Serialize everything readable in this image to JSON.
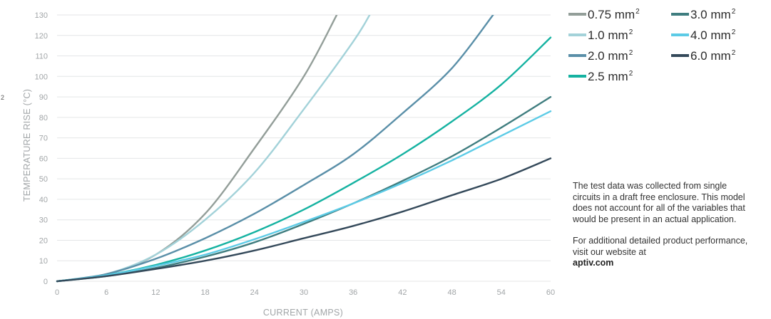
{
  "chart_data": {
    "type": "line",
    "xlabel": "CURRENT (AMPS)",
    "ylabel": "TEMPERATURE RISE (°C)",
    "xlim": [
      0,
      60
    ],
    "ylim": [
      0,
      130
    ],
    "x_ticks": [
      0,
      6,
      12,
      18,
      24,
      30,
      36,
      42,
      48,
      54,
      60
    ],
    "y_ticks": [
      0,
      10,
      20,
      30,
      40,
      50,
      60,
      70,
      80,
      90,
      100,
      110,
      120,
      130
    ],
    "grid": "horizontal",
    "legend_position": "top-right",
    "series": [
      {
        "name": "0.75 mm",
        "unit_sup": "2",
        "color": "#939e99",
        "x": [
          0,
          6,
          12,
          18,
          24,
          30,
          34
        ],
        "y": [
          0,
          3.5,
          13,
          33,
          65,
          100,
          130
        ]
      },
      {
        "name": "1.0 mm",
        "unit_sup": "2",
        "color": "#a3d2d9",
        "x": [
          0,
          6,
          12,
          18,
          24,
          30,
          36,
          38
        ],
        "y": [
          0,
          3.5,
          13,
          30,
          53,
          84,
          117,
          130
        ]
      },
      {
        "name": "2.0 mm",
        "unit_sup": "2",
        "color": "#5a8fa8",
        "x": [
          0,
          6,
          12,
          18,
          24,
          30,
          36,
          42,
          48,
          53
        ],
        "y": [
          0,
          3.5,
          11,
          21,
          33,
          47,
          62,
          82,
          104,
          130
        ]
      },
      {
        "name": "2.5 mm",
        "unit_sup": "2",
        "color": "#15b2a1",
        "x": [
          0,
          6,
          12,
          18,
          24,
          30,
          36,
          42,
          48,
          54,
          60
        ],
        "y": [
          0,
          3,
          8,
          15,
          24,
          35,
          48,
          62,
          78,
          96,
          119
        ]
      },
      {
        "name": "3.0 mm",
        "unit_sup": "2",
        "color": "#3f7d7f",
        "x": [
          0,
          6,
          12,
          18,
          24,
          30,
          36,
          42,
          48,
          54,
          60
        ],
        "y": [
          0,
          2.5,
          6.5,
          12,
          19,
          28,
          38,
          49,
          61,
          75,
          90
        ]
      },
      {
        "name": "4.0 mm",
        "unit_sup": "2",
        "color": "#5ccbe6",
        "x": [
          0,
          6,
          12,
          18,
          24,
          30,
          36,
          42,
          48,
          54,
          60
        ],
        "y": [
          0,
          3,
          7.5,
          13,
          20.5,
          29,
          38,
          48,
          59,
          71,
          83
        ]
      },
      {
        "name": "6.0 mm",
        "unit_sup": "2",
        "color": "#34495a",
        "x": [
          0,
          6,
          12,
          18,
          24,
          30,
          36,
          42,
          48,
          54,
          60
        ],
        "y": [
          0,
          2.5,
          6,
          10,
          15,
          21,
          27,
          34,
          42,
          50,
          60
        ]
      }
    ]
  },
  "note": {
    "paragraph1": "The test data was collected from single circuits in a draft free enclosure. This model does not account for all of the variables that would be present in an actual application.",
    "paragraph2": "For additional detailed product performance, visit our website at",
    "link": "aptiv.com"
  },
  "stray_mark": "2"
}
